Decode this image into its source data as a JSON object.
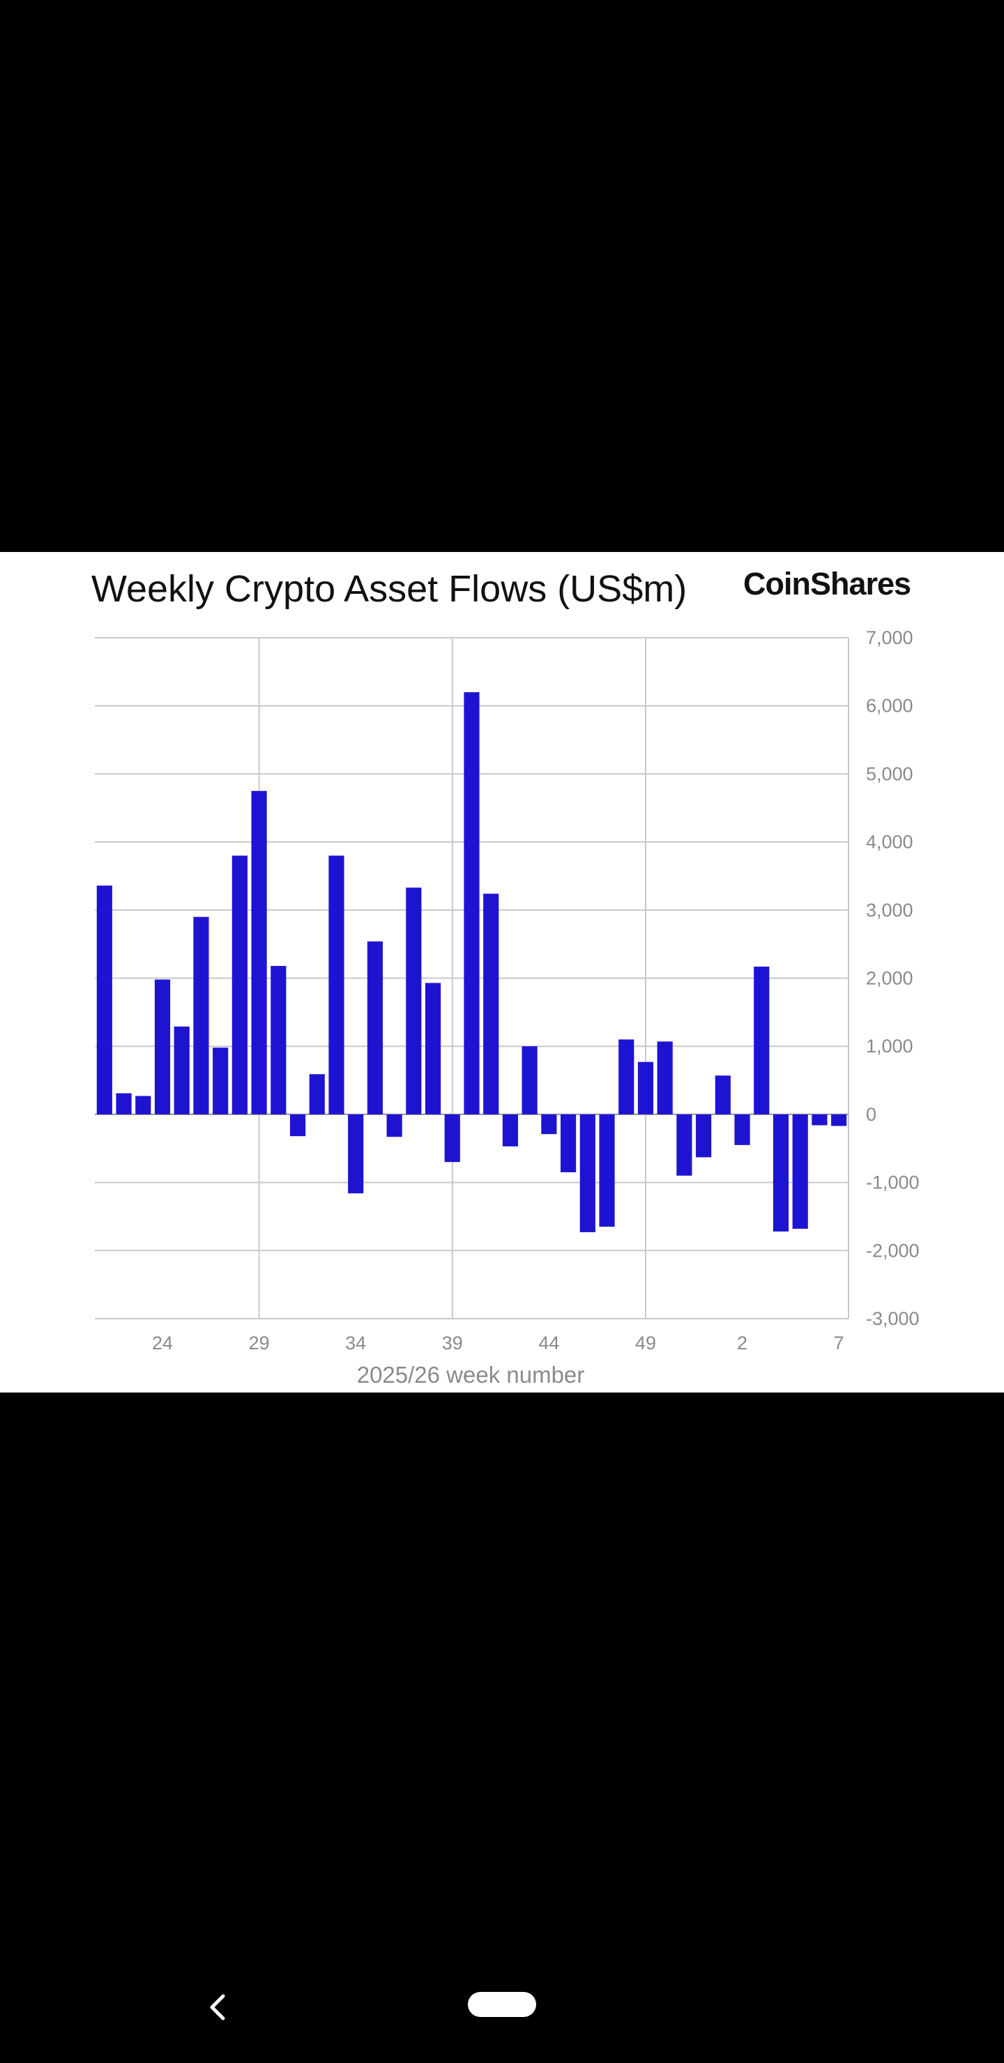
{
  "chart_data": {
    "type": "bar",
    "title": "Weekly Crypto Asset Flows (US$m)",
    "brand": "CoinShares",
    "xlabel": "2025/26 week number",
    "ylabel": "",
    "ylim": [
      -3000,
      7000
    ],
    "yticks": [
      "7,000",
      "6,000",
      "5,000",
      "4,000",
      "3,000",
      "2,000",
      "1,000",
      "0",
      "-1,000",
      "-2,000",
      "-3,000"
    ],
    "ytick_values": [
      7000,
      6000,
      5000,
      4000,
      3000,
      2000,
      1000,
      0,
      -1000,
      -2000,
      -3000
    ],
    "xtick_labels": [
      "24",
      "29",
      "34",
      "39",
      "44",
      "49",
      "2",
      "7"
    ],
    "grid": true,
    "bar_color": "#1f13d2",
    "categories": [
      "21",
      "22",
      "23",
      "24",
      "25",
      "26",
      "27",
      "28",
      "29",
      "30",
      "31",
      "32",
      "33",
      "34",
      "35",
      "36",
      "37",
      "38",
      "39",
      "40",
      "41",
      "42",
      "43",
      "44",
      "45",
      "46",
      "47",
      "48",
      "49",
      "50",
      "51",
      "52",
      "1",
      "2",
      "3",
      "4",
      "5",
      "6",
      "7"
    ],
    "values": [
      3360,
      310,
      270,
      1980,
      1290,
      2900,
      980,
      3800,
      4750,
      2180,
      -320,
      590,
      3800,
      -1160,
      2540,
      -330,
      3330,
      1930,
      -700,
      6200,
      3240,
      -470,
      1000,
      -290,
      -850,
      -1730,
      -1650,
      1100,
      770,
      1070,
      -900,
      -630,
      570,
      -450,
      2170,
      -1720,
      -1680,
      -160,
      -170
    ]
  },
  "nav": {
    "back_icon": "chevron-left-icon",
    "home_icon": "home-pill-icon"
  }
}
